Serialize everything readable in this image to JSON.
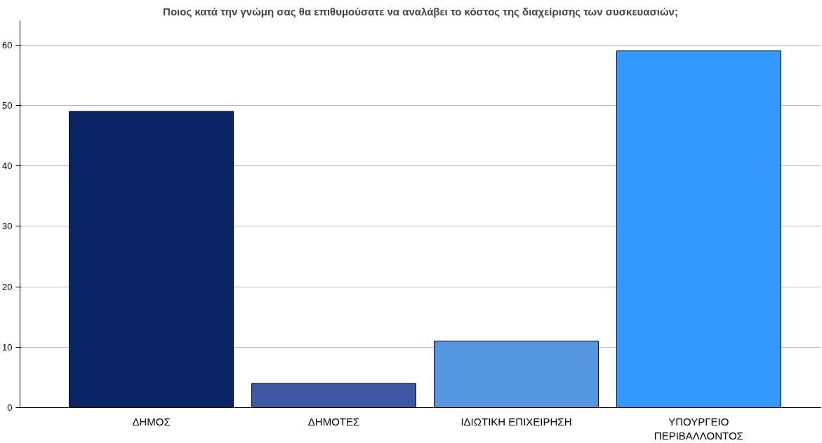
{
  "chart_data": {
    "type": "bar",
    "title": "Ποιος κατά την γνώμη σας θα επιθυμούσατε να αναλάβει το κόστος της διαχείρισης των συσκευασιών;",
    "categories": [
      "ΔΗΜΟΣ",
      "ΔΗΜΟΤΕΣ",
      "ΙΔΙΩΤΙΚΗ ΕΠΙΧΕΙΡΗΣΗ",
      "ΥΠΟΥΡΓΕΙΟ ΠΕΡΙΒΑΛΛΟΝΤΟΣ"
    ],
    "values": [
      49,
      4,
      11,
      59
    ],
    "colors": [
      "#0b2466",
      "#3e58a6",
      "#5596e0",
      "#3399ff"
    ],
    "ylim": [
      0,
      64
    ],
    "yticks": [
      0,
      10,
      20,
      30,
      40,
      50,
      60
    ],
    "grid": "y"
  }
}
